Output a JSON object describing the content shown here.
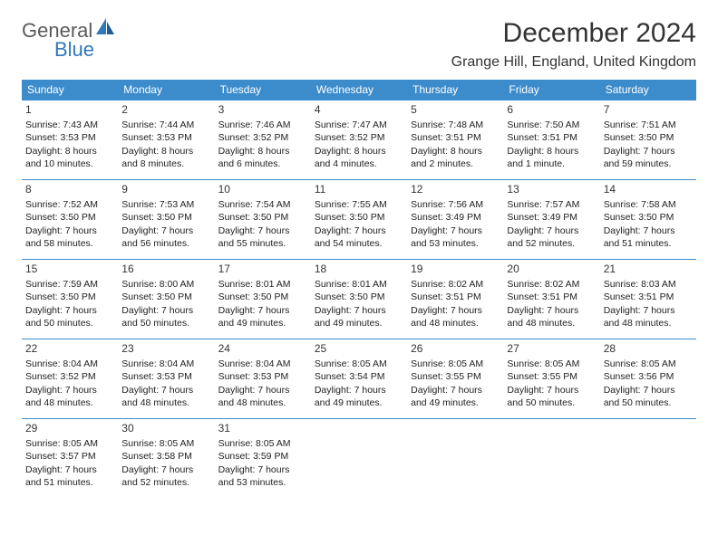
{
  "logo": {
    "text1": "General",
    "text2": "Blue"
  },
  "title": "December 2024",
  "location": "Grange Hill, England, United Kingdom",
  "colors": {
    "header_bg": "#3c8ccc",
    "header_text": "#ffffff",
    "border": "#3c8ccc",
    "text": "#222222",
    "logo_gray": "#5a5a5a",
    "logo_blue": "#2f78bd"
  },
  "day_headers": [
    "Sunday",
    "Monday",
    "Tuesday",
    "Wednesday",
    "Thursday",
    "Friday",
    "Saturday"
  ],
  "weeks": [
    [
      {
        "n": "1",
        "sr": "Sunrise: 7:43 AM",
        "ss": "Sunset: 3:53 PM",
        "dl1": "Daylight: 8 hours",
        "dl2": "and 10 minutes."
      },
      {
        "n": "2",
        "sr": "Sunrise: 7:44 AM",
        "ss": "Sunset: 3:53 PM",
        "dl1": "Daylight: 8 hours",
        "dl2": "and 8 minutes."
      },
      {
        "n": "3",
        "sr": "Sunrise: 7:46 AM",
        "ss": "Sunset: 3:52 PM",
        "dl1": "Daylight: 8 hours",
        "dl2": "and 6 minutes."
      },
      {
        "n": "4",
        "sr": "Sunrise: 7:47 AM",
        "ss": "Sunset: 3:52 PM",
        "dl1": "Daylight: 8 hours",
        "dl2": "and 4 minutes."
      },
      {
        "n": "5",
        "sr": "Sunrise: 7:48 AM",
        "ss": "Sunset: 3:51 PM",
        "dl1": "Daylight: 8 hours",
        "dl2": "and 2 minutes."
      },
      {
        "n": "6",
        "sr": "Sunrise: 7:50 AM",
        "ss": "Sunset: 3:51 PM",
        "dl1": "Daylight: 8 hours",
        "dl2": "and 1 minute."
      },
      {
        "n": "7",
        "sr": "Sunrise: 7:51 AM",
        "ss": "Sunset: 3:50 PM",
        "dl1": "Daylight: 7 hours",
        "dl2": "and 59 minutes."
      }
    ],
    [
      {
        "n": "8",
        "sr": "Sunrise: 7:52 AM",
        "ss": "Sunset: 3:50 PM",
        "dl1": "Daylight: 7 hours",
        "dl2": "and 58 minutes."
      },
      {
        "n": "9",
        "sr": "Sunrise: 7:53 AM",
        "ss": "Sunset: 3:50 PM",
        "dl1": "Daylight: 7 hours",
        "dl2": "and 56 minutes."
      },
      {
        "n": "10",
        "sr": "Sunrise: 7:54 AM",
        "ss": "Sunset: 3:50 PM",
        "dl1": "Daylight: 7 hours",
        "dl2": "and 55 minutes."
      },
      {
        "n": "11",
        "sr": "Sunrise: 7:55 AM",
        "ss": "Sunset: 3:50 PM",
        "dl1": "Daylight: 7 hours",
        "dl2": "and 54 minutes."
      },
      {
        "n": "12",
        "sr": "Sunrise: 7:56 AM",
        "ss": "Sunset: 3:49 PM",
        "dl1": "Daylight: 7 hours",
        "dl2": "and 53 minutes."
      },
      {
        "n": "13",
        "sr": "Sunrise: 7:57 AM",
        "ss": "Sunset: 3:49 PM",
        "dl1": "Daylight: 7 hours",
        "dl2": "and 52 minutes."
      },
      {
        "n": "14",
        "sr": "Sunrise: 7:58 AM",
        "ss": "Sunset: 3:50 PM",
        "dl1": "Daylight: 7 hours",
        "dl2": "and 51 minutes."
      }
    ],
    [
      {
        "n": "15",
        "sr": "Sunrise: 7:59 AM",
        "ss": "Sunset: 3:50 PM",
        "dl1": "Daylight: 7 hours",
        "dl2": "and 50 minutes."
      },
      {
        "n": "16",
        "sr": "Sunrise: 8:00 AM",
        "ss": "Sunset: 3:50 PM",
        "dl1": "Daylight: 7 hours",
        "dl2": "and 50 minutes."
      },
      {
        "n": "17",
        "sr": "Sunrise: 8:01 AM",
        "ss": "Sunset: 3:50 PM",
        "dl1": "Daylight: 7 hours",
        "dl2": "and 49 minutes."
      },
      {
        "n": "18",
        "sr": "Sunrise: 8:01 AM",
        "ss": "Sunset: 3:50 PM",
        "dl1": "Daylight: 7 hours",
        "dl2": "and 49 minutes."
      },
      {
        "n": "19",
        "sr": "Sunrise: 8:02 AM",
        "ss": "Sunset: 3:51 PM",
        "dl1": "Daylight: 7 hours",
        "dl2": "and 48 minutes."
      },
      {
        "n": "20",
        "sr": "Sunrise: 8:02 AM",
        "ss": "Sunset: 3:51 PM",
        "dl1": "Daylight: 7 hours",
        "dl2": "and 48 minutes."
      },
      {
        "n": "21",
        "sr": "Sunrise: 8:03 AM",
        "ss": "Sunset: 3:51 PM",
        "dl1": "Daylight: 7 hours",
        "dl2": "and 48 minutes."
      }
    ],
    [
      {
        "n": "22",
        "sr": "Sunrise: 8:04 AM",
        "ss": "Sunset: 3:52 PM",
        "dl1": "Daylight: 7 hours",
        "dl2": "and 48 minutes."
      },
      {
        "n": "23",
        "sr": "Sunrise: 8:04 AM",
        "ss": "Sunset: 3:53 PM",
        "dl1": "Daylight: 7 hours",
        "dl2": "and 48 minutes."
      },
      {
        "n": "24",
        "sr": "Sunrise: 8:04 AM",
        "ss": "Sunset: 3:53 PM",
        "dl1": "Daylight: 7 hours",
        "dl2": "and 48 minutes."
      },
      {
        "n": "25",
        "sr": "Sunrise: 8:05 AM",
        "ss": "Sunset: 3:54 PM",
        "dl1": "Daylight: 7 hours",
        "dl2": "and 49 minutes."
      },
      {
        "n": "26",
        "sr": "Sunrise: 8:05 AM",
        "ss": "Sunset: 3:55 PM",
        "dl1": "Daylight: 7 hours",
        "dl2": "and 49 minutes."
      },
      {
        "n": "27",
        "sr": "Sunrise: 8:05 AM",
        "ss": "Sunset: 3:55 PM",
        "dl1": "Daylight: 7 hours",
        "dl2": "and 50 minutes."
      },
      {
        "n": "28",
        "sr": "Sunrise: 8:05 AM",
        "ss": "Sunset: 3:56 PM",
        "dl1": "Daylight: 7 hours",
        "dl2": "and 50 minutes."
      }
    ],
    [
      {
        "n": "29",
        "sr": "Sunrise: 8:05 AM",
        "ss": "Sunset: 3:57 PM",
        "dl1": "Daylight: 7 hours",
        "dl2": "and 51 minutes."
      },
      {
        "n": "30",
        "sr": "Sunrise: 8:05 AM",
        "ss": "Sunset: 3:58 PM",
        "dl1": "Daylight: 7 hours",
        "dl2": "and 52 minutes."
      },
      {
        "n": "31",
        "sr": "Sunrise: 8:05 AM",
        "ss": "Sunset: 3:59 PM",
        "dl1": "Daylight: 7 hours",
        "dl2": "and 53 minutes."
      },
      null,
      null,
      null,
      null
    ]
  ]
}
